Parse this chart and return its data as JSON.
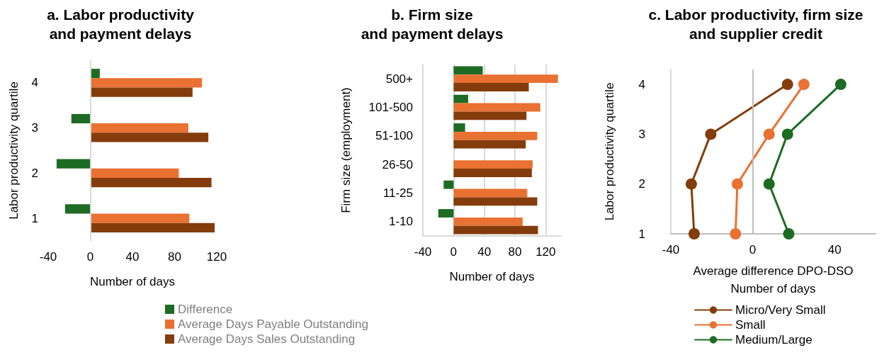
{
  "chart_data": [
    {
      "type": "bar",
      "orientation": "horizontal",
      "title": "a. Labor productivity\nand payment delays",
      "xlabel": "Number of days",
      "ylabel": "Labor productivity quartile",
      "categories": [
        "4",
        "3",
        "2",
        "1"
      ],
      "series": [
        {
          "name": "Difference",
          "color": "#1e6b23",
          "values": [
            9,
            -18,
            -32,
            -24
          ]
        },
        {
          "name": "Average Days Payable Outstanding",
          "color": "#e97132",
          "values": [
            106,
            93,
            84,
            94
          ]
        },
        {
          "name": "Average Days Sales Outstanding",
          "color": "#843c0c",
          "values": [
            97,
            112,
            115,
            118
          ]
        }
      ],
      "xlim": [
        -40,
        120
      ],
      "xticks": [
        -40,
        0,
        40,
        80,
        120
      ],
      "grid": false,
      "legend": "bottom",
      "ref_lines": [
        {
          "axis": "x",
          "value": 0,
          "color": "#d9d9d9"
        }
      ]
    },
    {
      "type": "bar",
      "orientation": "horizontal",
      "title": "b. Firm size\nand payment delays",
      "xlabel": "Number of days",
      "ylabel": "Firm size (employment)",
      "categories": [
        "500+",
        "101-500",
        "51-100",
        "26-50",
        "11-25",
        "1-10"
      ],
      "series": [
        {
          "color": "#1e6b23",
          "values": [
            38,
            19,
            15,
            null,
            -13,
            -20
          ]
        },
        {
          "color": "#e97132",
          "values": [
            136,
            113,
            109,
            103,
            96,
            90
          ]
        },
        {
          "color": "#843c0c",
          "values": [
            98,
            95,
            94,
            102,
            109,
            110
          ]
        }
      ],
      "xlim": [
        -40,
        140
      ],
      "xticks": [
        -40,
        0,
        40,
        80,
        120
      ],
      "grid": "x"
    },
    {
      "type": "line",
      "title": "c. Labor productivity, firm size\nand supplier credit",
      "xlabel": "Average difference DPO-DSO\nNumber of days",
      "ylabel": "Labor productivity quartile",
      "series": [
        {
          "name": "Micro/Very Small",
          "color": "#843c0c",
          "x": [
            17,
            -20.5,
            -30,
            -28.6
          ],
          "values": [
            4,
            3,
            2,
            1
          ]
        },
        {
          "name": "Small",
          "color": "#e97132",
          "x": [
            25,
            8,
            -7.5,
            -8.4
          ],
          "values": [
            4,
            3,
            2,
            1
          ]
        },
        {
          "name": "Medium/Large",
          "color": "#1e6b23",
          "x": [
            43,
            17,
            8,
            17.6
          ],
          "values": [
            4,
            3,
            2,
            1
          ]
        }
      ],
      "xlim": [
        -40,
        60
      ],
      "xticks": [
        -40,
        0,
        40
      ],
      "ylim": [
        1,
        4.3
      ],
      "yticks": [
        1,
        2,
        3,
        4
      ],
      "grid": false,
      "legend": "bottom",
      "marker": "circle",
      "line_style": "solid",
      "ref_lines": [
        {
          "axis": "x",
          "value": 0,
          "color": "#bfbfbf"
        }
      ]
    }
  ]
}
